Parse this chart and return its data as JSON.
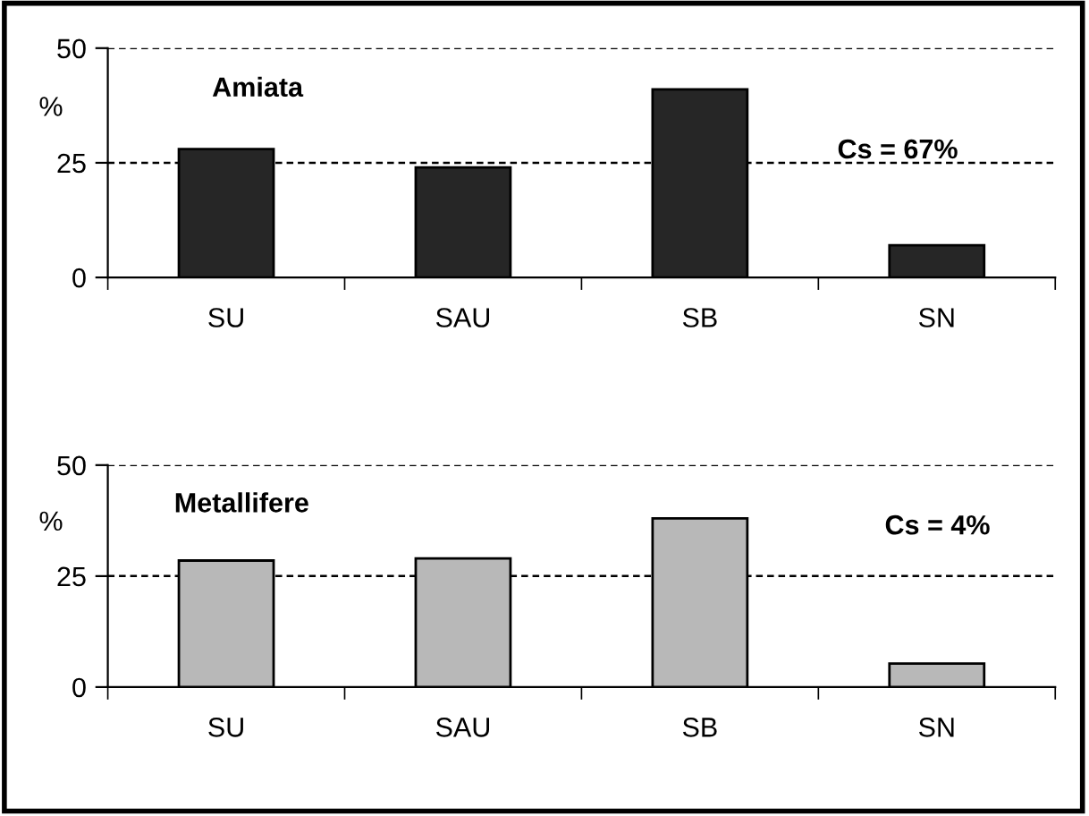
{
  "chart_data": [
    {
      "type": "bar",
      "title": "Amiata",
      "ylabel": "%",
      "categories": [
        "SU",
        "SAU",
        "SB",
        "SN"
      ],
      "values": [
        28,
        24,
        41,
        7
      ],
      "color": "#262626",
      "ylim": [
        0,
        50
      ],
      "yticks": [
        0,
        25,
        50
      ],
      "grid": "y",
      "annotations": [
        "Cs = 67%"
      ]
    },
    {
      "type": "bar",
      "title": "Metallifere",
      "ylabel": "%",
      "categories": [
        "SU",
        "SAU",
        "SB",
        "SN"
      ],
      "values": [
        28.5,
        29,
        38,
        5.3
      ],
      "color": "#b8b8b8",
      "ylim": [
        0,
        50
      ],
      "yticks": [
        0,
        25,
        50
      ],
      "grid": "y",
      "annotations": [
        "Cs = 4%"
      ]
    }
  ]
}
